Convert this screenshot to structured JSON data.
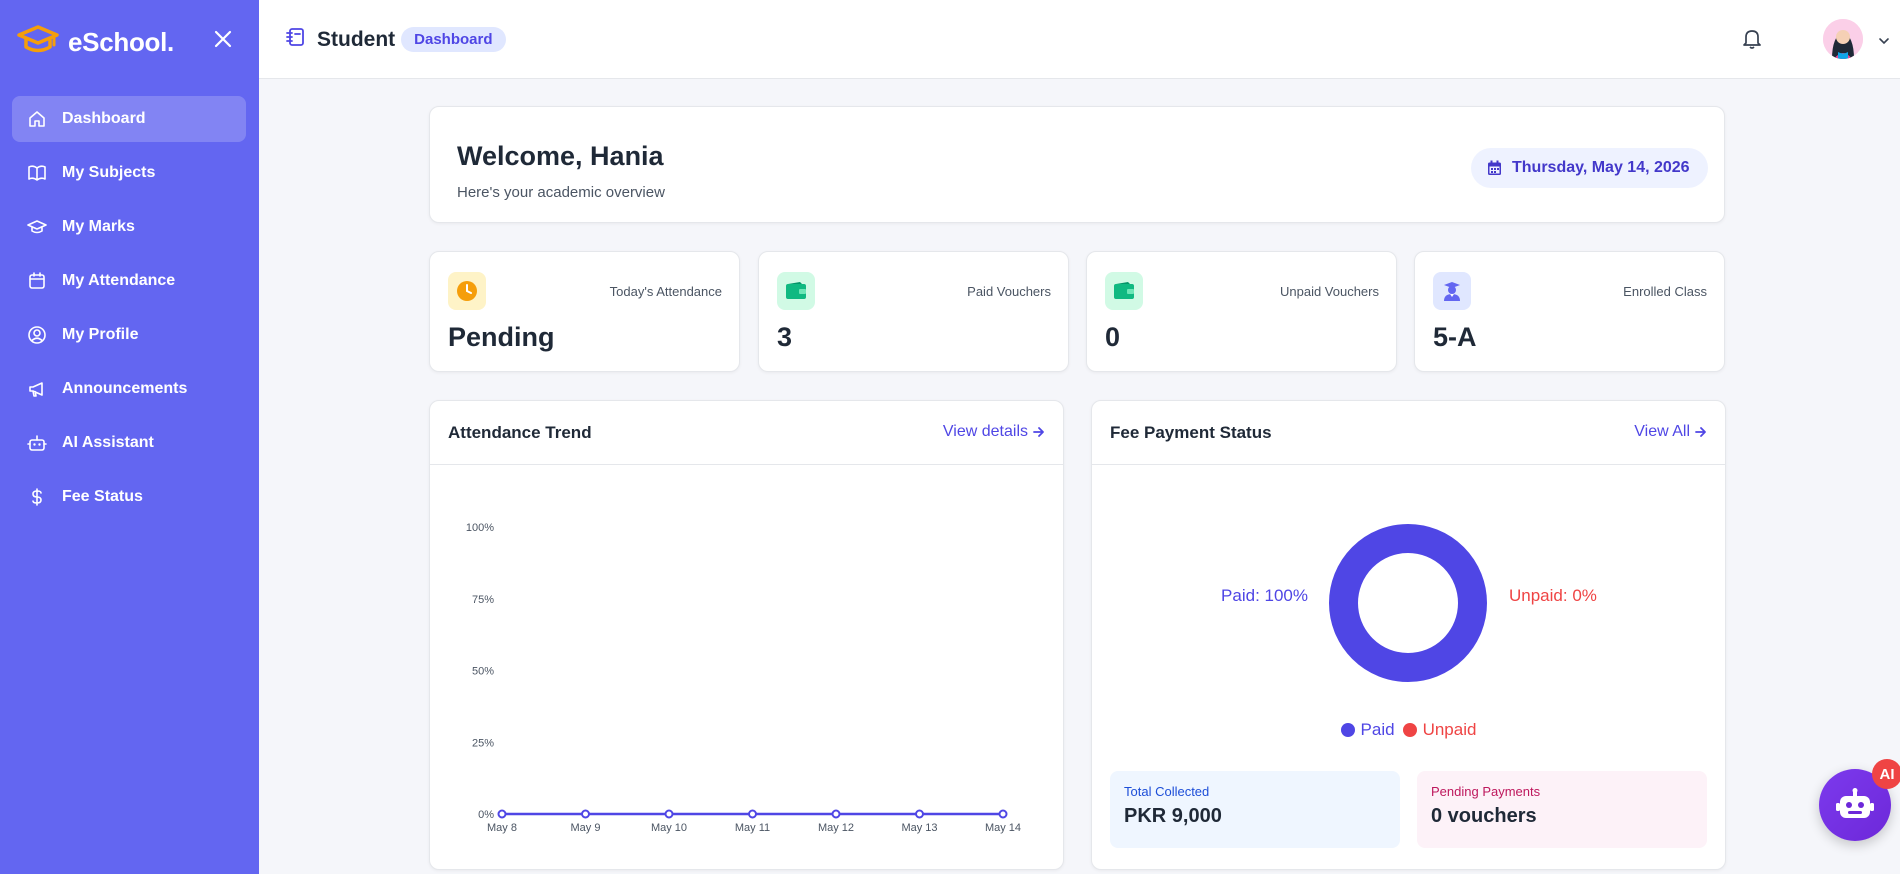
{
  "brand": {
    "name": "eSchool."
  },
  "sidebar": {
    "items": [
      {
        "label": "Dashboard",
        "icon": "home-icon",
        "active": true
      },
      {
        "label": "My Subjects",
        "icon": "book-icon"
      },
      {
        "label": "My Marks",
        "icon": "graduation-cap-icon"
      },
      {
        "label": "My Attendance",
        "icon": "calendar-icon"
      },
      {
        "label": "My Profile",
        "icon": "user-circle-icon"
      },
      {
        "label": "Announcements",
        "icon": "megaphone-icon"
      },
      {
        "label": "AI Assistant",
        "icon": "robot-icon"
      },
      {
        "label": "Fee Status",
        "icon": "dollar-icon"
      }
    ]
  },
  "header": {
    "title": "Student",
    "badge": "Dashboard"
  },
  "welcome": {
    "title": "Welcome, Hania",
    "subtitle": "Here's your academic overview",
    "date": "Thursday, May 14, 2026"
  },
  "stats": [
    {
      "label": "Today's Attendance",
      "value": "Pending",
      "icon": "clock-icon",
      "color": "#f59e0b"
    },
    {
      "label": "Paid Vouchers",
      "value": "3",
      "icon": "wallet-icon",
      "color": "#10b981"
    },
    {
      "label": "Unpaid Vouchers",
      "value": "0",
      "icon": "wallet-icon",
      "color": "#10b981"
    },
    {
      "label": "Enrolled Class",
      "value": "5-A",
      "icon": "student-icon",
      "color": "#6366f1"
    }
  ],
  "attendance": {
    "title": "Attendance Trend",
    "link": "View details"
  },
  "fees": {
    "title": "Fee Payment Status",
    "link": "View All",
    "paid_label": "Paid: 100%",
    "unpaid_label": "Unpaid: 0%",
    "legend_paid": "Paid",
    "legend_unpaid": "Unpaid",
    "total_label": "Total Collected",
    "total_value": "PKR 9,000",
    "pending_label": "Pending Payments",
    "pending_value": "0 vouchers"
  },
  "fab": {
    "badge": "AI"
  },
  "colors": {
    "primary": "#6366f1",
    "paid": "#4f46e5",
    "unpaid": "#ef4444"
  },
  "chart_data": [
    {
      "type": "line",
      "x": [
        "May 8",
        "May 9",
        "May 10",
        "May 11",
        "May 12",
        "May 13",
        "May 14"
      ],
      "series": [
        {
          "values": [
            0,
            0,
            0,
            0,
            0,
            0,
            0
          ]
        }
      ],
      "ytick_labels": [
        "0%",
        "25%",
        "50%",
        "75%",
        "100%"
      ],
      "ylim": [
        0,
        100
      ]
    },
    {
      "type": "pie",
      "categories": [
        "Paid",
        "Unpaid"
      ],
      "values": [
        100,
        0
      ]
    }
  ]
}
